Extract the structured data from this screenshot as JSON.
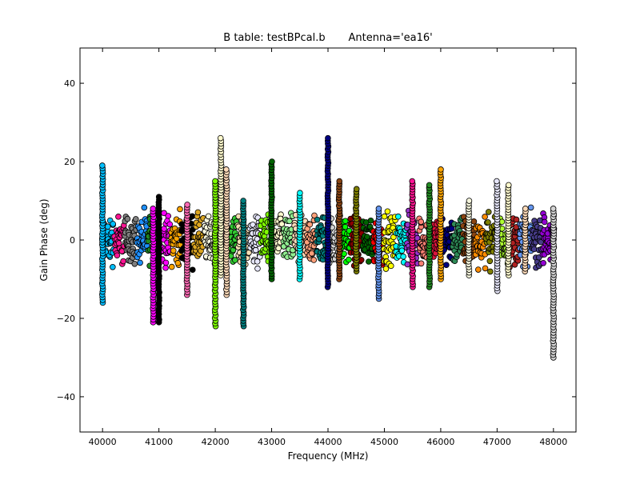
{
  "chart_data": {
    "type": "scatter",
    "title": "B table: testBPcal.b       Antenna='ea16'",
    "xlabel": "Frequency (MHz)",
    "ylabel": "Gain Phase (deg)",
    "xlim": [
      39600,
      48400
    ],
    "ylim": [
      -49,
      49
    ],
    "xticks": [
      40000,
      41000,
      42000,
      43000,
      44000,
      45000,
      46000,
      47000,
      48000
    ],
    "xtick_labels": [
      "40000",
      "41000",
      "42000",
      "43000",
      "44000",
      "45000",
      "46000",
      "47000",
      "48000"
    ],
    "yticks": [
      -40,
      -20,
      0,
      20,
      40
    ],
    "ytick_labels": [
      "−40",
      "−20",
      "0",
      "20",
      "40"
    ],
    "grid": false,
    "legend": "none",
    "marker": "circle",
    "marker_edge_color": "#000000",
    "band": {
      "start": 40000,
      "end": 48000,
      "channel_step": 62.5,
      "base_spread": 3,
      "edge_scatter": [
        {
          "x": 40000,
          "ymin": -16,
          "ymax": 19
        },
        {
          "x": 40900,
          "ymin": -21,
          "ymax": 8
        },
        {
          "x": 41000,
          "ymin": -21,
          "ymax": 11
        },
        {
          "x": 41500,
          "ymin": -14,
          "ymax": 9
        },
        {
          "x": 42000,
          "ymin": -22,
          "ymax": 15
        },
        {
          "x": 42100,
          "ymin": -9,
          "ymax": 26
        },
        {
          "x": 42200,
          "ymin": -14,
          "ymax": 18
        },
        {
          "x": 42500,
          "ymin": -22,
          "ymax": 10
        },
        {
          "x": 43000,
          "ymin": -10,
          "ymax": 20
        },
        {
          "x": 43500,
          "ymin": -10,
          "ymax": 12
        },
        {
          "x": 44000,
          "ymin": -12,
          "ymax": 26
        },
        {
          "x": 44200,
          "ymin": -10,
          "ymax": 15
        },
        {
          "x": 44500,
          "ymin": -8,
          "ymax": 13
        },
        {
          "x": 44900,
          "ymin": -15,
          "ymax": 8
        },
        {
          "x": 45500,
          "ymin": -12,
          "ymax": 15
        },
        {
          "x": 45800,
          "ymin": -12,
          "ymax": 14
        },
        {
          "x": 46000,
          "ymin": -10,
          "ymax": 18
        },
        {
          "x": 46500,
          "ymin": -9,
          "ymax": 10
        },
        {
          "x": 47000,
          "ymin": -13,
          "ymax": 15
        },
        {
          "x": 47200,
          "ymin": -9,
          "ymax": 14
        },
        {
          "x": 47500,
          "ymin": -8,
          "ymax": 8
        },
        {
          "x": 48000,
          "ymin": -30,
          "ymax": 8
        }
      ]
    },
    "series_colors": [
      "#00bfff",
      "#ff1493",
      "#7f7f7f",
      "#1e90ff",
      "#228b22",
      "#ff00ff",
      "#ffa500",
      "#000000",
      "#daa520",
      "#f5f5dc",
      "#ff69b4",
      "#32cd32",
      "#f5deb3",
      "#e6e6fa",
      "#7fff00",
      "#fffacd",
      "#90ee90",
      "#ffdab9",
      "#ffa07a",
      "#008080",
      "#d3d3d3",
      "#00ff00",
      "#8b0000",
      "#006400",
      "#ff0000",
      "#ffff00",
      "#00ffff",
      "#9932cc",
      "#fa8072",
      "#dc143c",
      "#000080",
      "#2e8b57",
      "#8b4513",
      "#ff8c00",
      "#808000",
      "#adff2f",
      "#b22222",
      "#6495ed",
      "#483d8b",
      "#9400d3"
    ]
  }
}
